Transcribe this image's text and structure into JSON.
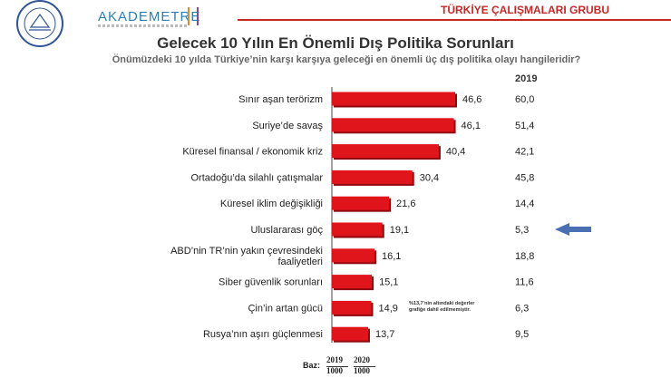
{
  "header": {
    "brand": "AKADEMETRE",
    "group_title": "TÜRKİYE ÇALIŞMALARI GRUBU"
  },
  "colors": {
    "bar": "#e0141b",
    "bar_shade": "#8e0a0e",
    "arrow": "#4a6fb3",
    "accent_red": "#c62828"
  },
  "chart_data": {
    "type": "bar",
    "orientation": "horizontal",
    "title": "Gelecek 10 Yılın En Önemli Dış Politika Sorunları",
    "subtitle": "Önümüzdeki 10 yılda Türkiye’nin karşı karşıya geleceği en önemli üç dış politika olayı hangileridir?",
    "categories": [
      "Sınır aşan terörizm",
      "Suriye’de savaş",
      "Küresel finansal / ekonomik kriz",
      "Ortadoğu’da silahlı çatışmalar",
      "Küresel iklim değişikliği",
      "Uluslararası göç",
      "ABD’nin TR’nin yakın çevresindeki faaliyetleri",
      "Siber güvenlik sorunları",
      "Çin’in artan gücü",
      "Rusya’nın aşırı güçlenmesi"
    ],
    "series": [
      {
        "values": [
          46.6,
          46.1,
          40.4,
          30.4,
          21.6,
          19.1,
          16.1,
          15.1,
          14.9,
          13.7
        ]
      },
      {
        "name": "2019",
        "values": [
          60.0,
          51.4,
          42.1,
          45.8,
          14.4,
          5.3,
          18.8,
          11.6,
          6.3,
          9.5
        ]
      }
    ],
    "value_labels_2020": [
      "46,6",
      "46,1",
      "40,4",
      "30,4",
      "21,6",
      "19,1",
      "16,1",
      "15,1",
      "14,9",
      "13,7"
    ],
    "value_labels_2019": [
      "60,0",
      "51,4",
      "42,1",
      "45,8",
      "14,4",
      "5,3",
      "18,8",
      "11,6",
      "6,3",
      "9,5"
    ],
    "year_column_header": "2019",
    "highlighted_row": "Uluslararası göç",
    "note": "%13,7’nin altındaki değerler grafiğe dahil edilmemiştir.",
    "base": {
      "label": "Baz:",
      "years": [
        "2019",
        "2020"
      ],
      "n": [
        "1000",
        "1000"
      ]
    }
  }
}
